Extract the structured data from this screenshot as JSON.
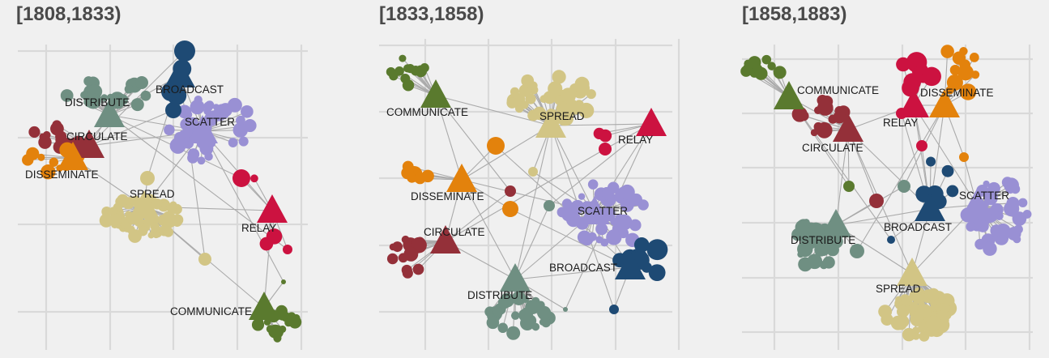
{
  "colors": {
    "COMMUNICATE": "#5a7a2e",
    "DISTRIBUTE": "#6f8f82",
    "BROADCAST": "#1e4a74",
    "SCATTER": "#9990d4",
    "CIRCULATE": "#943039",
    "DISSEMINATE": "#e3820c",
    "SPREAD": "#d2c585",
    "RELAY": "#cc1240"
  },
  "panels": [
    {
      "title": "[1808,1833)",
      "hubs": [
        {
          "label": "BROADCAST",
          "color_key": "BROADCAST"
        },
        {
          "label": "DISTRIBUTE",
          "color_key": "DISTRIBUTE"
        },
        {
          "label": "SCATTER",
          "color_key": "SCATTER"
        },
        {
          "label": "CIRCULATE",
          "color_key": "CIRCULATE"
        },
        {
          "label": "DISSEMINATE",
          "color_key": "DISSEMINATE"
        },
        {
          "label": "SPREAD",
          "color_key": "SPREAD"
        },
        {
          "label": "RELAY",
          "color_key": "RELAY"
        },
        {
          "label": "COMMUNICATE",
          "color_key": "COMMUNICATE"
        }
      ]
    },
    {
      "title": "[1833,1858)",
      "hubs": [
        {
          "label": "COMMUNICATE",
          "color_key": "COMMUNICATE"
        },
        {
          "label": "SPREAD",
          "color_key": "SPREAD"
        },
        {
          "label": "RELAY",
          "color_key": "RELAY"
        },
        {
          "label": "DISSEMINATE",
          "color_key": "DISSEMINATE"
        },
        {
          "label": "SCATTER",
          "color_key": "SCATTER"
        },
        {
          "label": "CIRCULATE",
          "color_key": "CIRCULATE"
        },
        {
          "label": "BROADCAST",
          "color_key": "BROADCAST"
        },
        {
          "label": "DISTRIBUTE",
          "color_key": "DISTRIBUTE"
        }
      ]
    },
    {
      "title": "[1858,1883)",
      "hubs": [
        {
          "label": "COMMUNICATE",
          "color_key": "COMMUNICATE"
        },
        {
          "label": "DISSEMINATE",
          "color_key": "DISSEMINATE"
        },
        {
          "label": "RELAY",
          "color_key": "RELAY"
        },
        {
          "label": "CIRCULATE",
          "color_key": "CIRCULATE"
        },
        {
          "label": "SCATTER",
          "color_key": "SCATTER"
        },
        {
          "label": "BROADCAST",
          "color_key": "BROADCAST"
        },
        {
          "label": "DISTRIBUTE",
          "color_key": "DISTRIBUTE"
        },
        {
          "label": "SPREAD",
          "color_key": "SPREAD"
        }
      ]
    }
  ]
}
